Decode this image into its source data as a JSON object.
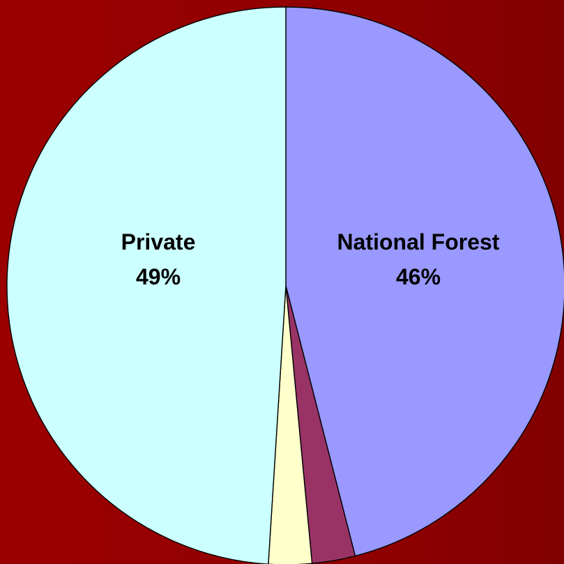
{
  "chart_data": {
    "type": "pie",
    "slices": [
      {
        "name": "National Forest",
        "value": 46,
        "label_name": "National Forest",
        "label_value": "46%",
        "color": "#9999ff"
      },
      {
        "name": "",
        "value": 2.5,
        "label_name": "",
        "label_value": "",
        "color": "#993366"
      },
      {
        "name": "",
        "value": 2.5,
        "label_name": "",
        "label_value": "",
        "color": "#ffffcc"
      },
      {
        "name": "Private",
        "value": 49,
        "label_name": "Private",
        "label_value": "49%",
        "color": "#ccffff"
      }
    ],
    "start_angle_deg": 0,
    "direction": "clockwise"
  },
  "colors": {
    "background": "#8e0000",
    "outline": "#000000",
    "label_text": "#000000"
  }
}
